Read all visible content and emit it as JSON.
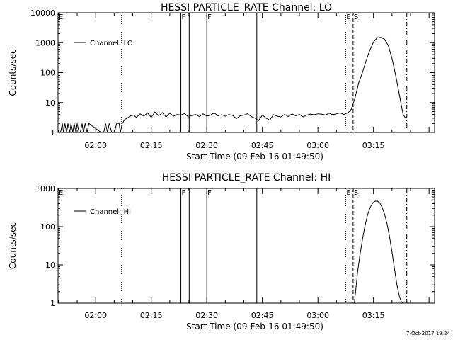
{
  "footer": {
    "timestamp": "7-Oct-2017 19:24"
  },
  "chart_data": [
    {
      "type": "line",
      "title": "HESSI PARTICLE_RATE Channel: LO",
      "xlabel": "Start Time (09-Feb-16 01:49:50)",
      "ylabel": "Counts/sec",
      "ylog": true,
      "ylim": [
        1,
        10000
      ],
      "xlim": [
        "01:49:50",
        "03:31:30"
      ],
      "xticks": [
        "02:00",
        "02:15",
        "02:30",
        "02:45",
        "03:00",
        "03:15"
      ],
      "yticks": [
        "1",
        "10",
        "100",
        "1000",
        "10000"
      ],
      "legend": {
        "entry": "Channel: LO",
        "placement": "top-left"
      },
      "markers": [
        {
          "time": "01:49:50",
          "label": "E",
          "style": "solid"
        },
        {
          "time": "02:07:00",
          "label": "",
          "style": "dotted"
        },
        {
          "time": "02:23:00",
          "label": "F",
          "style": "solid"
        },
        {
          "time": "02:25:15",
          "label": "",
          "style": "solid"
        },
        {
          "time": "02:30:00",
          "label": "F",
          "style": "solid"
        },
        {
          "time": "02:43:30",
          "label": "",
          "style": "solid"
        },
        {
          "time": "03:07:30",
          "label": "E",
          "style": "dotted"
        },
        {
          "time": "03:09:30",
          "label": "S",
          "style": "dashed"
        },
        {
          "time": "03:24:00",
          "label": "",
          "style": "dashdot"
        }
      ],
      "series": [
        {
          "name": "Channel: LO",
          "x": [
            "01:50:30",
            "01:51:00",
            "01:51:20",
            "01:51:40",
            "01:52:10",
            "01:52:30",
            "01:53:00",
            "01:53:20",
            "01:53:50",
            "01:54:10",
            "01:54:40",
            "01:55:00",
            "01:55:30",
            "01:55:50",
            "01:56:20",
            "01:56:40",
            "01:57:10",
            "01:57:40",
            "01:58:10",
            "02:01:30",
            "02:02:10",
            "02:02:40",
            "02:03:10",
            "02:03:40",
            "02:04:20",
            "02:05:00",
            "02:05:40",
            "02:06:20",
            "02:06:40",
            "02:07:10",
            "02:07:50",
            "02:08:30",
            "02:09:20",
            "02:10:10",
            "02:11:00",
            "02:12:00",
            "02:13:00",
            "02:14:00",
            "02:15:00",
            "02:16:00",
            "02:17:00",
            "02:18:00",
            "02:19:00",
            "02:20:00",
            "02:21:00",
            "02:22:00",
            "02:23:00",
            "02:24:00",
            "02:25:00",
            "02:26:00",
            "02:27:00",
            "02:28:00",
            "02:29:00",
            "02:30:00",
            "02:31:00",
            "02:32:00",
            "02:33:00",
            "02:34:00",
            "02:35:00",
            "02:36:00",
            "02:37:00",
            "02:38:00",
            "02:39:00",
            "02:40:00",
            "02:41:00",
            "02:42:00",
            "02:43:00",
            "02:44:00",
            "02:45:00",
            "02:46:00",
            "02:47:00",
            "02:48:00",
            "02:49:00",
            "02:50:00",
            "02:51:00",
            "02:52:00",
            "02:53:00",
            "02:54:00",
            "02:55:00",
            "02:56:00",
            "02:57:00",
            "02:58:00",
            "02:59:00",
            "03:00:00",
            "03:01:00",
            "03:02:00",
            "03:03:00",
            "03:04:00",
            "03:05:00",
            "03:06:00",
            "03:07:00",
            "03:08:00",
            "03:08:30",
            "03:09:00",
            "03:09:30",
            "03:10:00",
            "03:10:30",
            "03:11:00",
            "03:12:00",
            "03:13:00",
            "03:14:00",
            "03:15:00",
            "03:16:00",
            "03:17:00",
            "03:18:00",
            "03:19:00",
            "03:20:00",
            "03:21:00",
            "03:22:00",
            "03:23:00",
            "03:23:40"
          ],
          "y": [
            1,
            2,
            1,
            2,
            1,
            2,
            1,
            2,
            1,
            2,
            1,
            2,
            1,
            1,
            2,
            1,
            2,
            1,
            2,
            1,
            1,
            2,
            1,
            2,
            1,
            1,
            2,
            2,
            1,
            2,
            2.7,
            3,
            3.5,
            3.8,
            3.2,
            4.2,
            3.5,
            4.5,
            3.2,
            4.8,
            3.6,
            4.6,
            3.3,
            4.4,
            3.5,
            4.0,
            3.8,
            4.3,
            3.3,
            3.7,
            4.0,
            3.4,
            4.2,
            3.5,
            3.8,
            4.5,
            3.6,
            3.9,
            3.5,
            4.0,
            3.7,
            2.9,
            3.6,
            3.8,
            4.2,
            3.4,
            3.0,
            2.5,
            3.8,
            3.0,
            2.6,
            3.9,
            3.5,
            3.3,
            4.0,
            3.4,
            4.2,
            3.6,
            4.0,
            3.3,
            3.8,
            4.1,
            3.9,
            4.2,
            4.1,
            3.8,
            4.4,
            3.9,
            4.2,
            4.5,
            4.0,
            4.5,
            5.0,
            6.0,
            9.0,
            14,
            25,
            45,
            100,
            250,
            550,
            1050,
            1450,
            1500,
            1300,
            800,
            300,
            80,
            18,
            4,
            3
          ]
        }
      ]
    },
    {
      "type": "line",
      "title": "HESSI PARTICLE_RATE Channel: HI",
      "xlabel": "Start Time (09-Feb-16 01:49:50)",
      "ylabel": "Counts/sec",
      "ylog": true,
      "ylim": [
        1,
        1000
      ],
      "xlim": [
        "01:49:50",
        "03:31:30"
      ],
      "xticks": [
        "02:00",
        "02:15",
        "02:30",
        "02:45",
        "03:00",
        "03:15"
      ],
      "yticks": [
        "1",
        "10",
        "100",
        "1000"
      ],
      "legend": {
        "entry": "Channel: HI",
        "placement": "top-left"
      },
      "markers": [
        {
          "time": "01:49:50",
          "label": "E",
          "style": "solid"
        },
        {
          "time": "02:07:00",
          "label": "",
          "style": "dotted"
        },
        {
          "time": "02:23:00",
          "label": "F",
          "style": "solid"
        },
        {
          "time": "02:25:15",
          "label": "",
          "style": "solid"
        },
        {
          "time": "02:30:00",
          "label": "F",
          "style": "solid"
        },
        {
          "time": "02:43:30",
          "label": "",
          "style": "solid"
        },
        {
          "time": "03:07:30",
          "label": "E",
          "style": "dotted"
        },
        {
          "time": "03:09:30",
          "label": "S",
          "style": "dashed"
        },
        {
          "time": "03:24:00",
          "label": "",
          "style": "dashdot"
        }
      ],
      "series": [
        {
          "name": "Channel: HI",
          "x": [
            "03:09:50",
            "03:10:10",
            "03:10:40",
            "03:11:20",
            "03:12:00",
            "03:12:40",
            "03:13:20",
            "03:14:00",
            "03:14:40",
            "03:15:20",
            "03:16:00",
            "03:16:40",
            "03:17:20",
            "03:18:00",
            "03:18:40",
            "03:19:20",
            "03:20:00",
            "03:20:40",
            "03:21:20",
            "03:22:00",
            "03:22:30",
            "03:23:00"
          ],
          "y": [
            1,
            2,
            6,
            18,
            45,
            100,
            190,
            300,
            400,
            460,
            470,
            420,
            320,
            210,
            120,
            55,
            22,
            8,
            3,
            1.5,
            1.1,
            1
          ]
        }
      ]
    }
  ]
}
